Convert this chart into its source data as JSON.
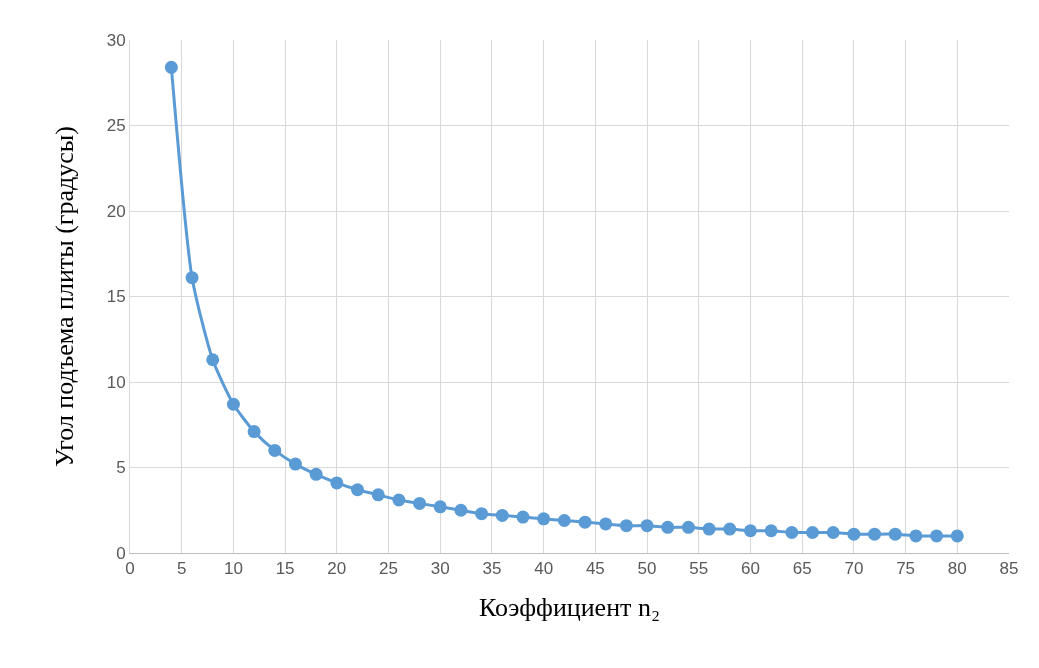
{
  "chart_data": {
    "type": "line",
    "xlabel": "Коэффициент n₂",
    "ylabel": "Угол подъема плиты (градусы)",
    "x": [
      4,
      6,
      8,
      10,
      12,
      14,
      16,
      18,
      20,
      22,
      24,
      26,
      28,
      30,
      32,
      34,
      36,
      38,
      40,
      42,
      44,
      46,
      48,
      50,
      52,
      54,
      56,
      58,
      60,
      62,
      64,
      66,
      68,
      70,
      72,
      74,
      76,
      78,
      80
    ],
    "series": [
      {
        "color": "#5b9bd5",
        "values": [
          28.4,
          16.1,
          11.3,
          8.7,
          7.1,
          6.0,
          5.2,
          4.6,
          4.1,
          3.7,
          3.4,
          3.1,
          2.9,
          2.7,
          2.5,
          2.3,
          2.2,
          2.1,
          2.0,
          1.9,
          1.8,
          1.7,
          1.6,
          1.6,
          1.5,
          1.5,
          1.4,
          1.4,
          1.3,
          1.3,
          1.2,
          1.2,
          1.2,
          1.1,
          1.1,
          1.1,
          1.0,
          1.0,
          1.0
        ]
      }
    ],
    "xlim": [
      0,
      85
    ],
    "xticks": [
      0,
      5,
      10,
      15,
      20,
      25,
      30,
      35,
      40,
      45,
      50,
      55,
      60,
      65,
      70,
      75,
      80,
      85
    ],
    "ylim": [
      0,
      30
    ],
    "yticks": [
      0,
      5,
      10,
      15,
      20,
      25,
      30
    ],
    "grid": true,
    "marker": "circle",
    "line_style": "solid"
  }
}
